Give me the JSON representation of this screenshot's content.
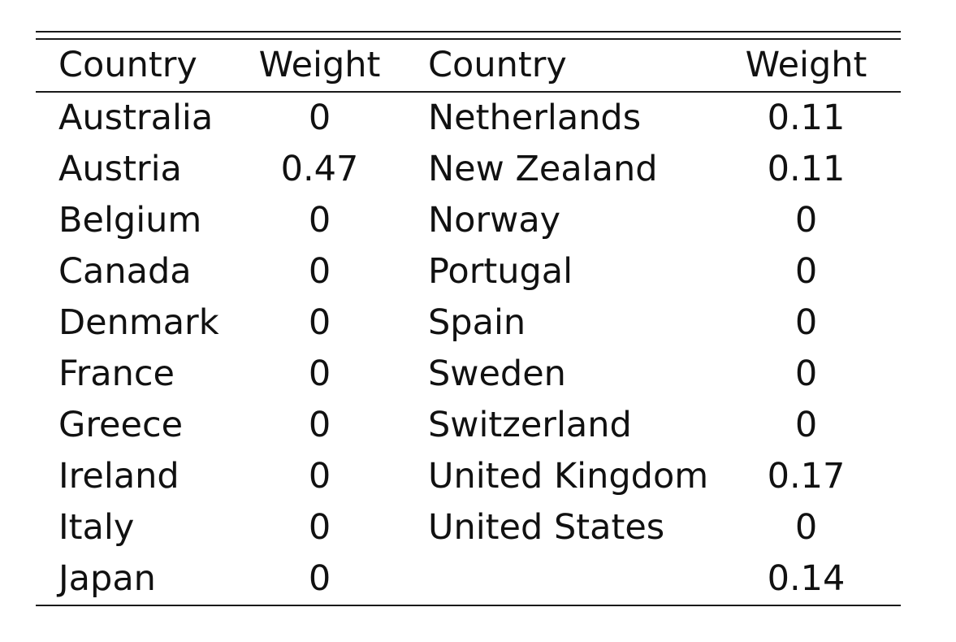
{
  "table": {
    "headers": [
      "Country",
      "Weight",
      "Country",
      "Weight"
    ],
    "rows": [
      [
        "Australia",
        "0",
        "Netherlands",
        "0.11"
      ],
      [
        "Austria",
        "0.47",
        "New Zealand",
        "0.11"
      ],
      [
        "Belgium",
        "0",
        "Norway",
        "0"
      ],
      [
        "Canada",
        "0",
        "Portugal",
        "0"
      ],
      [
        "Denmark",
        "0",
        "Spain",
        "0"
      ],
      [
        "France",
        "0",
        "Sweden",
        "0"
      ],
      [
        "Greece",
        "0",
        "Switzerland",
        "0"
      ],
      [
        "Ireland",
        "0",
        "United Kingdom",
        "0.17"
      ],
      [
        "Italy",
        "0",
        "United States",
        "0"
      ],
      [
        "Japan",
        "0",
        "",
        "0.14"
      ]
    ]
  }
}
